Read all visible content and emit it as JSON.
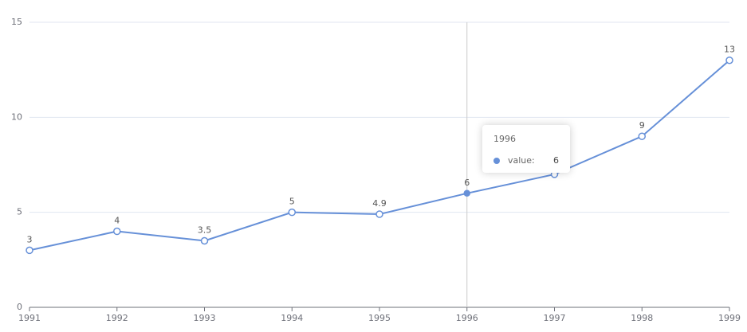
{
  "chart_data": {
    "type": "line",
    "categories": [
      "1991",
      "1992",
      "1993",
      "1994",
      "1995",
      "1996",
      "1997",
      "1998",
      "1999"
    ],
    "series": [
      {
        "name": "value",
        "color": "#6690d8",
        "values": [
          3,
          4,
          3.5,
          5,
          4.9,
          6,
          7,
          9,
          13
        ]
      }
    ],
    "ylim": [
      0,
      15
    ],
    "yticks": [
      0,
      5,
      10,
      15
    ],
    "grid": true,
    "data_labels": true,
    "tooltip": {
      "category": "1996",
      "series_label": "value:",
      "value": 6
    }
  }
}
